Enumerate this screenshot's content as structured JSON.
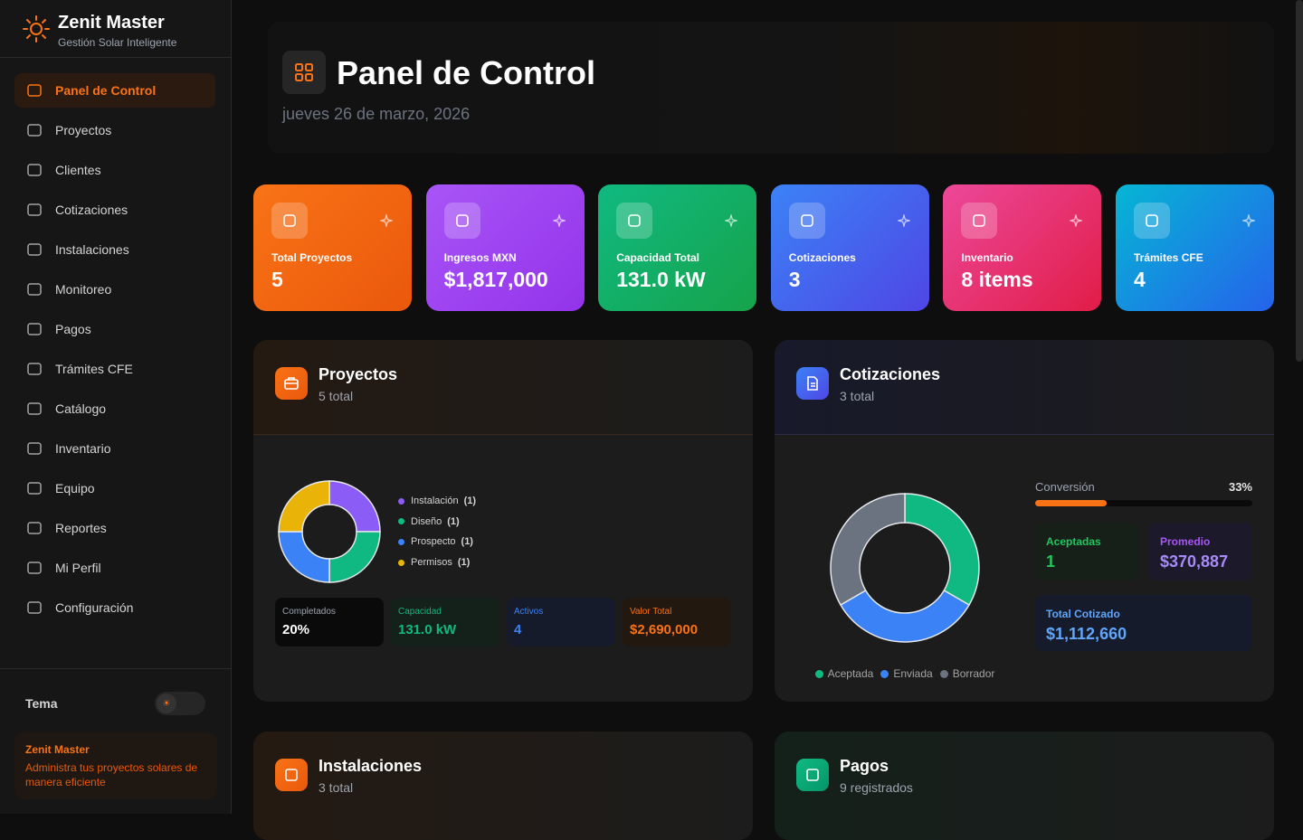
{
  "sidebar": {
    "brand": "Zenit Master",
    "tagline": "Gestión Solar Inteligente",
    "nav": [
      "Panel de Control",
      "Proyectos",
      "Clientes",
      "Cotizaciones",
      "Instalaciones",
      "Monitoreo",
      "Pagos",
      "Trámites CFE",
      "Catálogo",
      "Inventario",
      "Equipo",
      "Reportes",
      "Mi Perfil",
      "Configuración"
    ],
    "active": 0,
    "theme_label": "Tema",
    "footer": {
      "title": "Zenit Master",
      "text": "Administra tus proyectos solares de manera eficiente"
    }
  },
  "header": {
    "title": "Panel de Control",
    "date": "jueves 26 de marzo, 2026"
  },
  "stats": [
    {
      "label": "Total Proyectos",
      "value": "5",
      "colors": [
        "#f97316",
        "#ea580c"
      ]
    },
    {
      "label": "Ingresos MXN",
      "value": "$1,817,000",
      "colors": [
        "#a855f7",
        "#9333ea"
      ]
    },
    {
      "label": "Capacidad Total",
      "value": "131.0 kW",
      "colors": [
        "#10b981",
        "#16a34a"
      ]
    },
    {
      "label": "Cotizaciones",
      "value": "3",
      "colors": [
        "#3b82f6",
        "#4f46e5"
      ]
    },
    {
      "label": "Inventario",
      "value": "8 items",
      "colors": [
        "#ec4899",
        "#e11d48"
      ]
    },
    {
      "label": "Trámites CFE",
      "value": "4",
      "colors": [
        "#06b6d4",
        "#2563eb"
      ]
    }
  ],
  "proyectos": {
    "title": "Proyectos",
    "subtitle": "5 total",
    "chart": {
      "type": "donut",
      "categories": [
        "Instalación",
        "Diseño",
        "Prospecto",
        "Permisos"
      ],
      "values": [
        1,
        1,
        1,
        1
      ],
      "value_labels": [
        "(1)",
        "(1)",
        "(1)",
        "(1)"
      ],
      "colors": [
        "#8b5cf6",
        "#10b981",
        "#3b82f6",
        "#eab308"
      ]
    },
    "metrics": [
      {
        "label": "Completados",
        "value": "20%",
        "colors": [
          "#0a0a0a",
          "#9ca3af",
          "#ffffff"
        ]
      },
      {
        "label": "Capacidad",
        "value": "131.0 kW",
        "colors": [
          "#14201a",
          "#10b981",
          "#10b981"
        ]
      },
      {
        "label": "Activos",
        "value": "4",
        "colors": [
          "#151b2b",
          "#3b82f6",
          "#3b82f6"
        ]
      },
      {
        "label": "Valor Total",
        "value": "$2,690,000",
        "colors": [
          "#221810",
          "#f97316",
          "#f97316"
        ]
      }
    ]
  },
  "cotizaciones": {
    "title": "Cotizaciones",
    "subtitle": "3 total",
    "chart": {
      "type": "donut",
      "categories": [
        "Aceptada",
        "Enviada",
        "Borrador"
      ],
      "values": [
        1,
        1,
        1
      ],
      "colors": [
        "#10b981",
        "#3b82f6",
        "#6b7280"
      ]
    },
    "conversion": {
      "label": "Conversión",
      "value": 33,
      "value_label": "33%"
    },
    "metrics": [
      {
        "label": "Aceptadas",
        "value": "1",
        "colors": [
          "#162019",
          "#22c55e",
          "#22c55e"
        ]
      },
      {
        "label": "Promedio",
        "value": "$370,887",
        "colors": [
          "#1c1a2a",
          "#a855f7",
          "#a78bfa"
        ]
      },
      {
        "label": "Total Cotizado",
        "value": "$1,112,660",
        "colors": [
          "#151b2b",
          "#60a5fa",
          "#60a5fa"
        ]
      }
    ]
  },
  "bottom": [
    {
      "title": "Instalaciones",
      "subtitle": "3 total",
      "colors": [
        "#f97316",
        "#ea580c"
      ]
    },
    {
      "title": "Pagos",
      "subtitle": "9 registrados",
      "colors": [
        "#10b981",
        "#059669"
      ]
    }
  ]
}
